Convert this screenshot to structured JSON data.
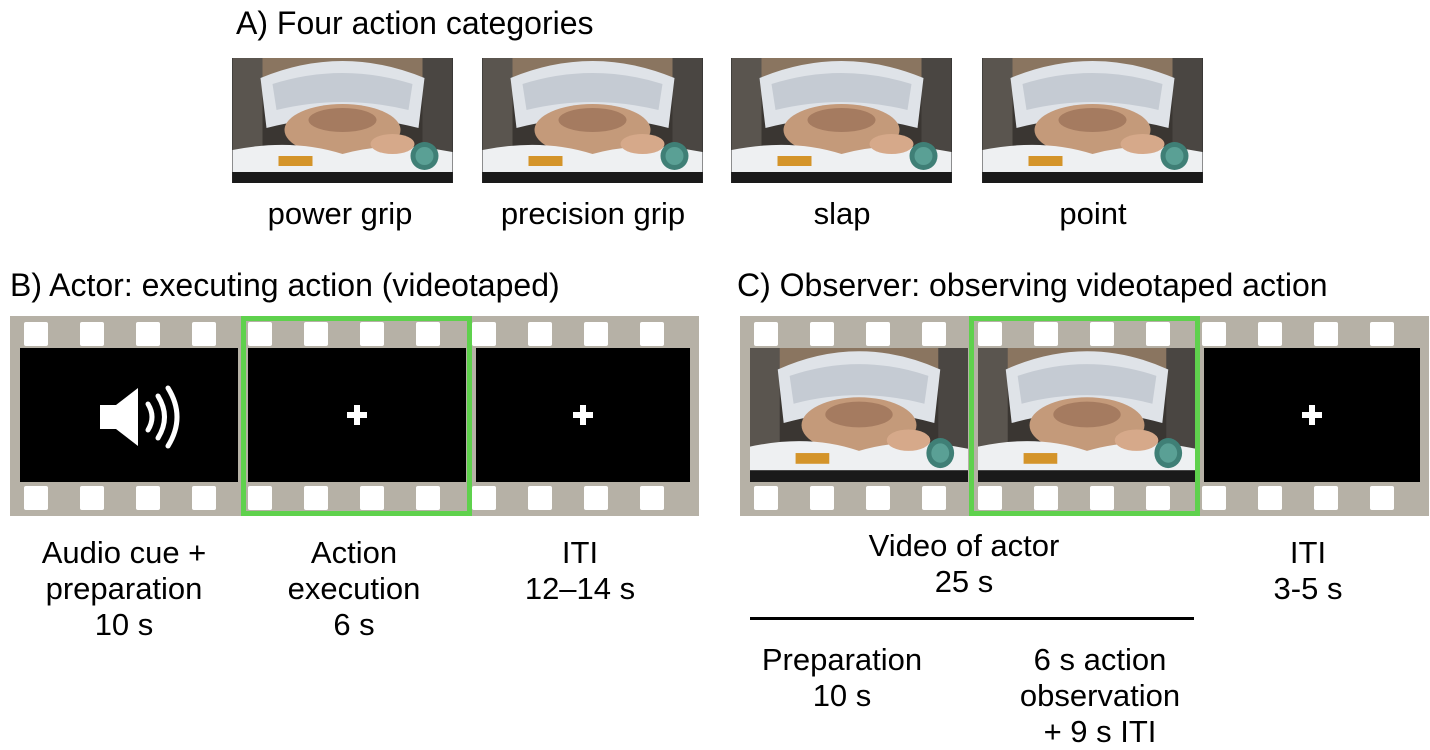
{
  "panel_a": {
    "title": "A) Four action categories",
    "categories": [
      "power grip",
      "precision grip",
      "slap",
      "point"
    ]
  },
  "panel_b": {
    "title": "B) Actor: executing action (videotaped)",
    "labels": [
      [
        "Audio cue +",
        "preparation",
        "10 s"
      ],
      [
        "Action",
        "execution",
        "6 s"
      ],
      [
        "ITI",
        "12–14 s"
      ]
    ]
  },
  "panel_c": {
    "title": "C) Observer: observing videotaped action",
    "video_label": [
      "Video of actor",
      "25 s"
    ],
    "iti_label": [
      "ITI",
      "3-5 s"
    ],
    "sub_labels": [
      [
        "Preparation",
        "10 s"
      ],
      [
        "6 s action",
        "observation",
        "+ 9 s ITI"
      ]
    ]
  },
  "colors": {
    "highlight": "#5fd14d",
    "film": "#b6b1a6",
    "screen": "#000000"
  },
  "icons": {
    "cue": "speaker-icon",
    "fixation": "fixation-cross-icon"
  }
}
